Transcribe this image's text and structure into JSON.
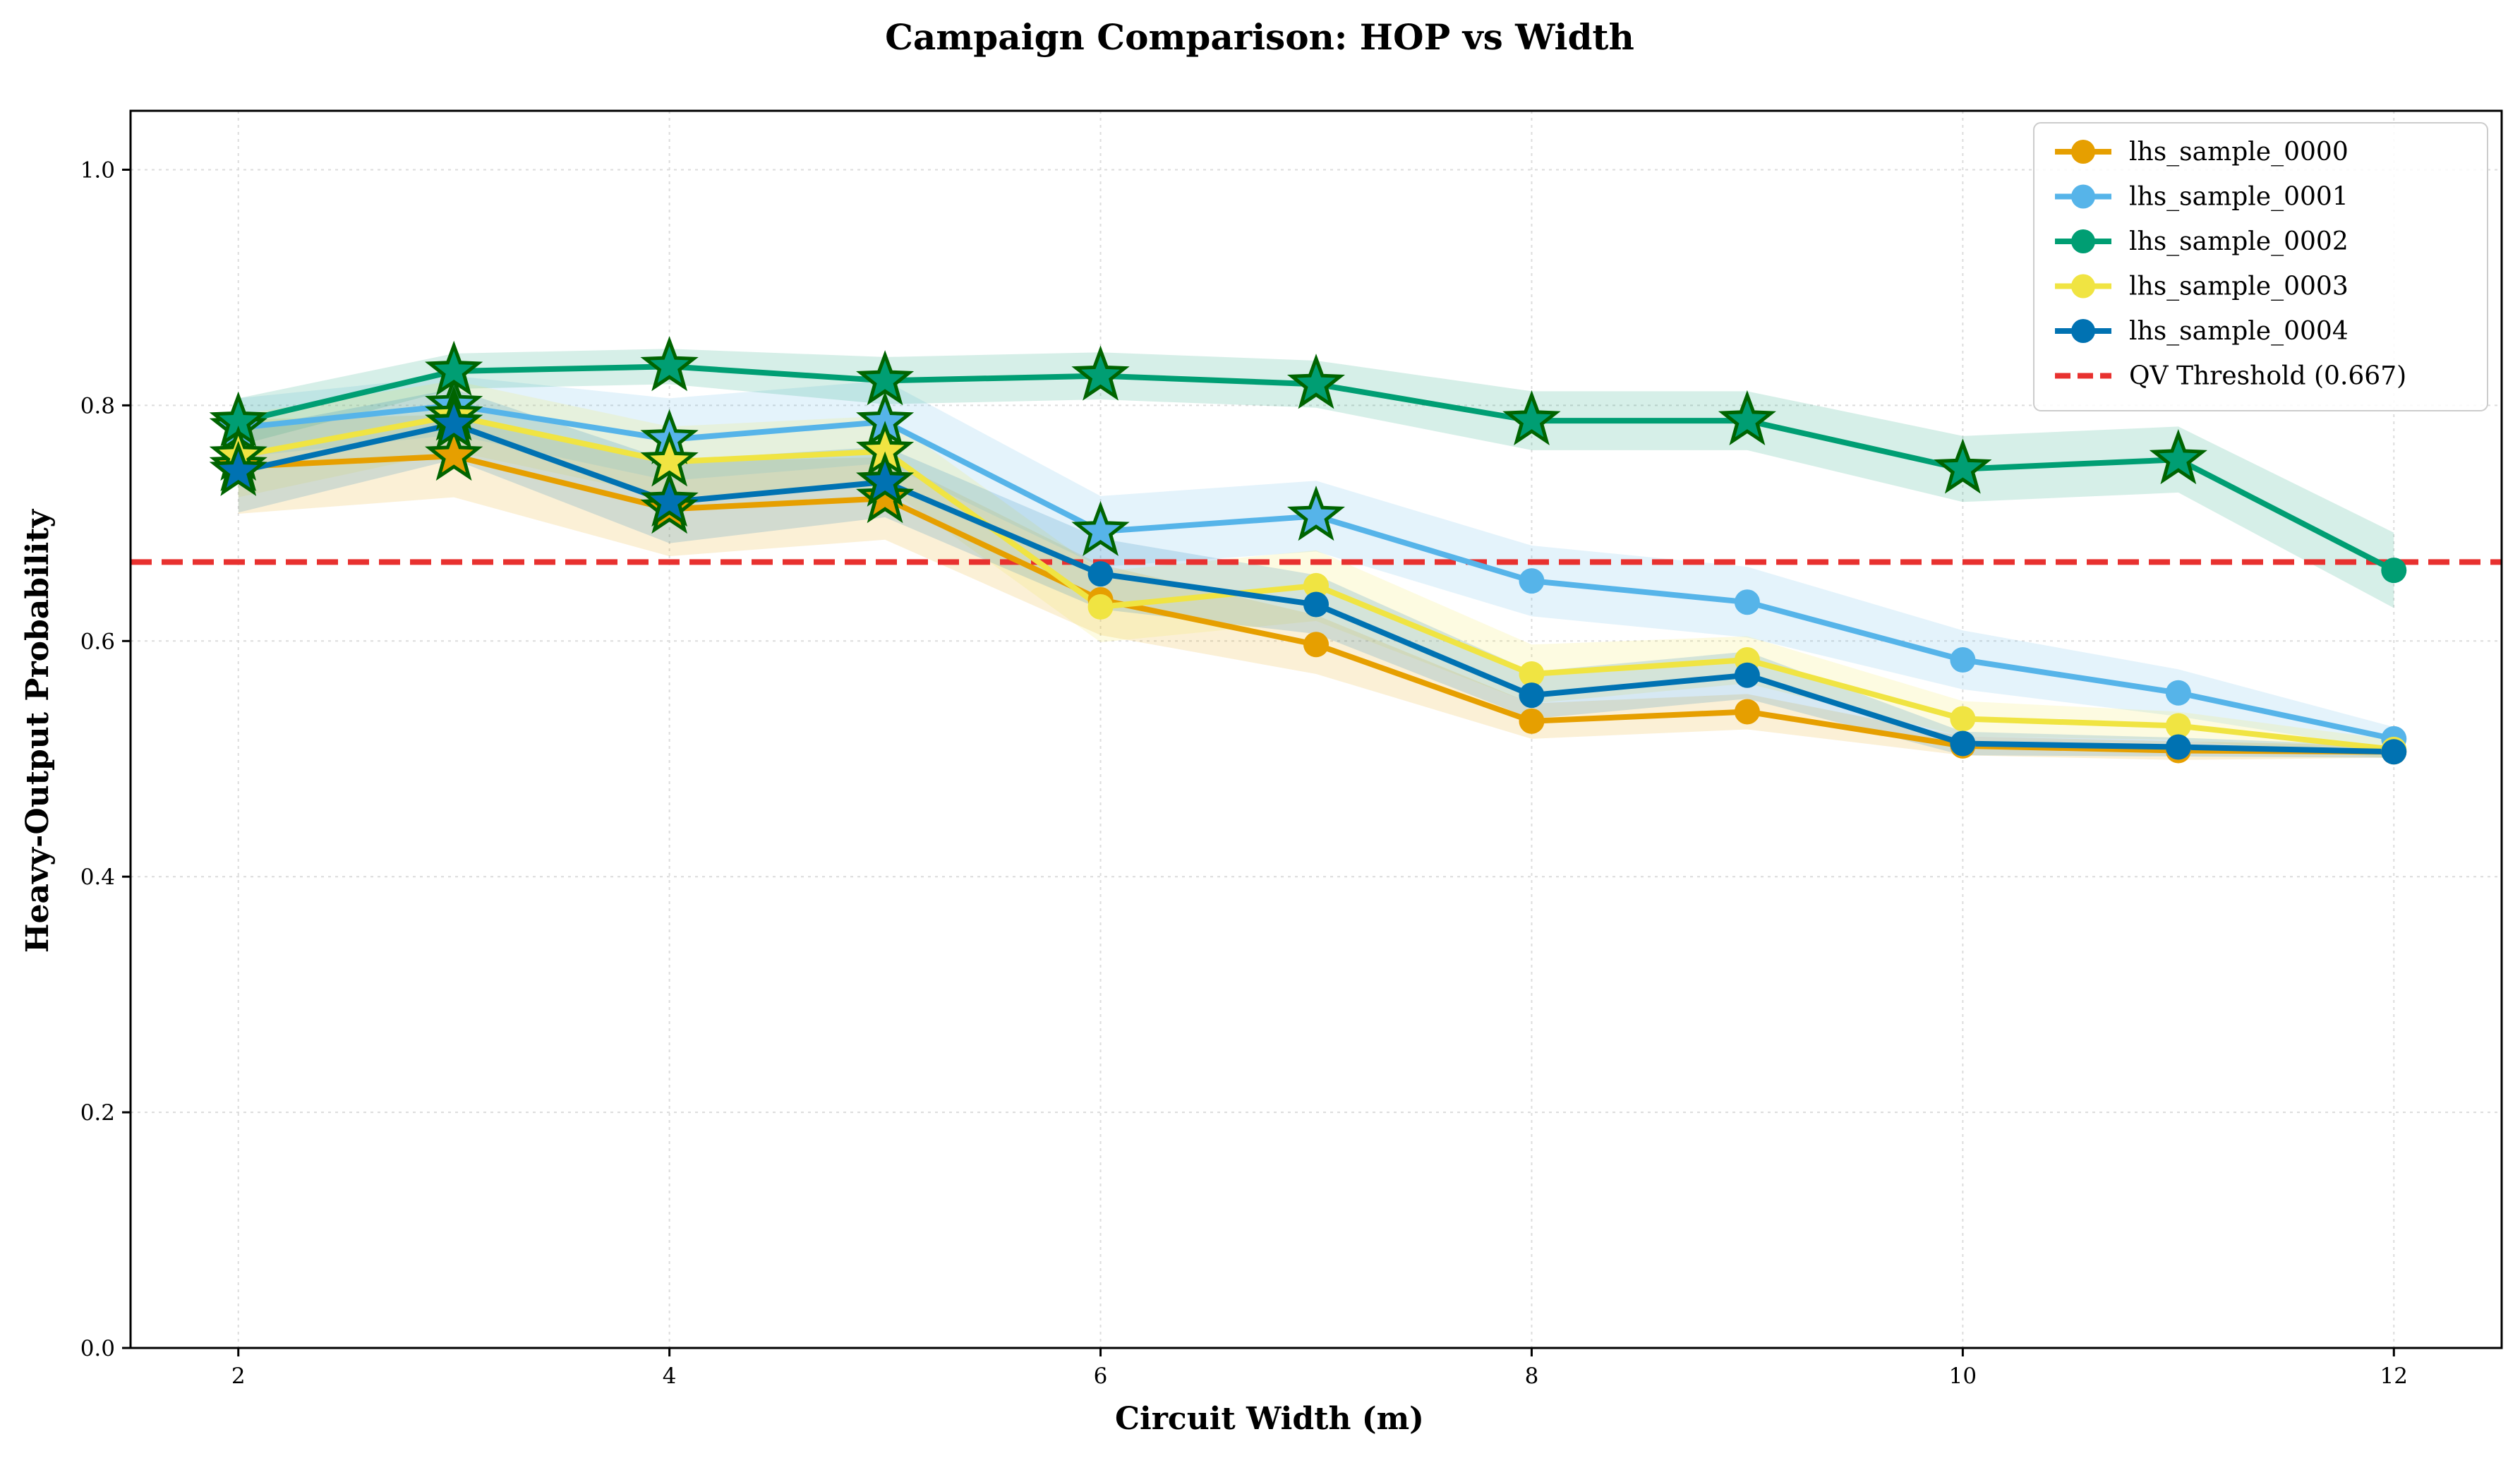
{
  "chart_data": {
    "type": "line",
    "title": "Campaign Comparison: HOP vs Width",
    "xlabel": "Circuit Width (m)",
    "ylabel": "Heavy-Output Probability",
    "xlim": [
      1.5,
      12.5
    ],
    "ylim": [
      0.0,
      1.05
    ],
    "xticks": [
      2,
      4,
      6,
      8,
      10,
      12
    ],
    "yticks": [
      0.0,
      0.2,
      0.4,
      0.6,
      0.8,
      1.0
    ],
    "xtick_labels": [
      "2",
      "4",
      "6",
      "8",
      "10",
      "12"
    ],
    "ytick_labels": [
      "0.0",
      "0.2",
      "0.4",
      "0.6",
      "0.8",
      "1.0"
    ],
    "grid": true,
    "legend_position": "top-right",
    "x": [
      2,
      3,
      4,
      5,
      6,
      7,
      8,
      9,
      10,
      11,
      12
    ],
    "threshold": {
      "name": "QV Threshold (0.667)",
      "value": 0.667,
      "color": "#e8312f",
      "style": "dashed"
    },
    "marker_note": "star markers where HOP exceeds threshold; circle markers otherwise",
    "series": [
      {
        "name": "lhs_sample_0000",
        "color": "#E69F00",
        "values": [
          0.748,
          0.757,
          0.712,
          0.721,
          0.635,
          0.597,
          0.532,
          0.54,
          0.511,
          0.507,
          0.506
        ],
        "band": [
          0.04,
          0.035,
          0.04,
          0.035,
          0.03,
          0.025,
          0.015,
          0.015,
          0.008,
          0.008,
          0.005
        ]
      },
      {
        "name": "lhs_sample_0001",
        "color": "#56B4E9",
        "values": [
          0.781,
          0.8,
          0.771,
          0.786,
          0.693,
          0.706,
          0.651,
          0.633,
          0.584,
          0.556,
          0.517
        ],
        "band": [
          0.025,
          0.025,
          0.035,
          0.035,
          0.03,
          0.03,
          0.03,
          0.03,
          0.025,
          0.02,
          0.01
        ]
      },
      {
        "name": "lhs_sample_0002",
        "color": "#009E73",
        "values": [
          0.786,
          0.829,
          0.833,
          0.821,
          0.825,
          0.818,
          0.787,
          0.787,
          0.746,
          0.754,
          0.66
        ],
        "band": [
          0.02,
          0.015,
          0.015,
          0.02,
          0.02,
          0.02,
          0.025,
          0.025,
          0.028,
          0.028,
          0.032
        ]
      },
      {
        "name": "lhs_sample_0003",
        "color": "#F0E442",
        "values": [
          0.757,
          0.791,
          0.752,
          0.761,
          0.629,
          0.647,
          0.572,
          0.584,
          0.534,
          0.528,
          0.508
        ],
        "band": [
          0.035,
          0.03,
          0.03,
          0.03,
          0.03,
          0.03,
          0.025,
          0.02,
          0.015,
          0.012,
          0.008
        ]
      },
      {
        "name": "lhs_sample_0004",
        "color": "#0072B2",
        "values": [
          0.744,
          0.784,
          0.718,
          0.735,
          0.657,
          0.631,
          0.554,
          0.571,
          0.513,
          0.51,
          0.506
        ],
        "band": [
          0.035,
          0.03,
          0.035,
          0.03,
          0.03,
          0.025,
          0.02,
          0.02,
          0.01,
          0.008,
          0.005
        ]
      }
    ]
  }
}
